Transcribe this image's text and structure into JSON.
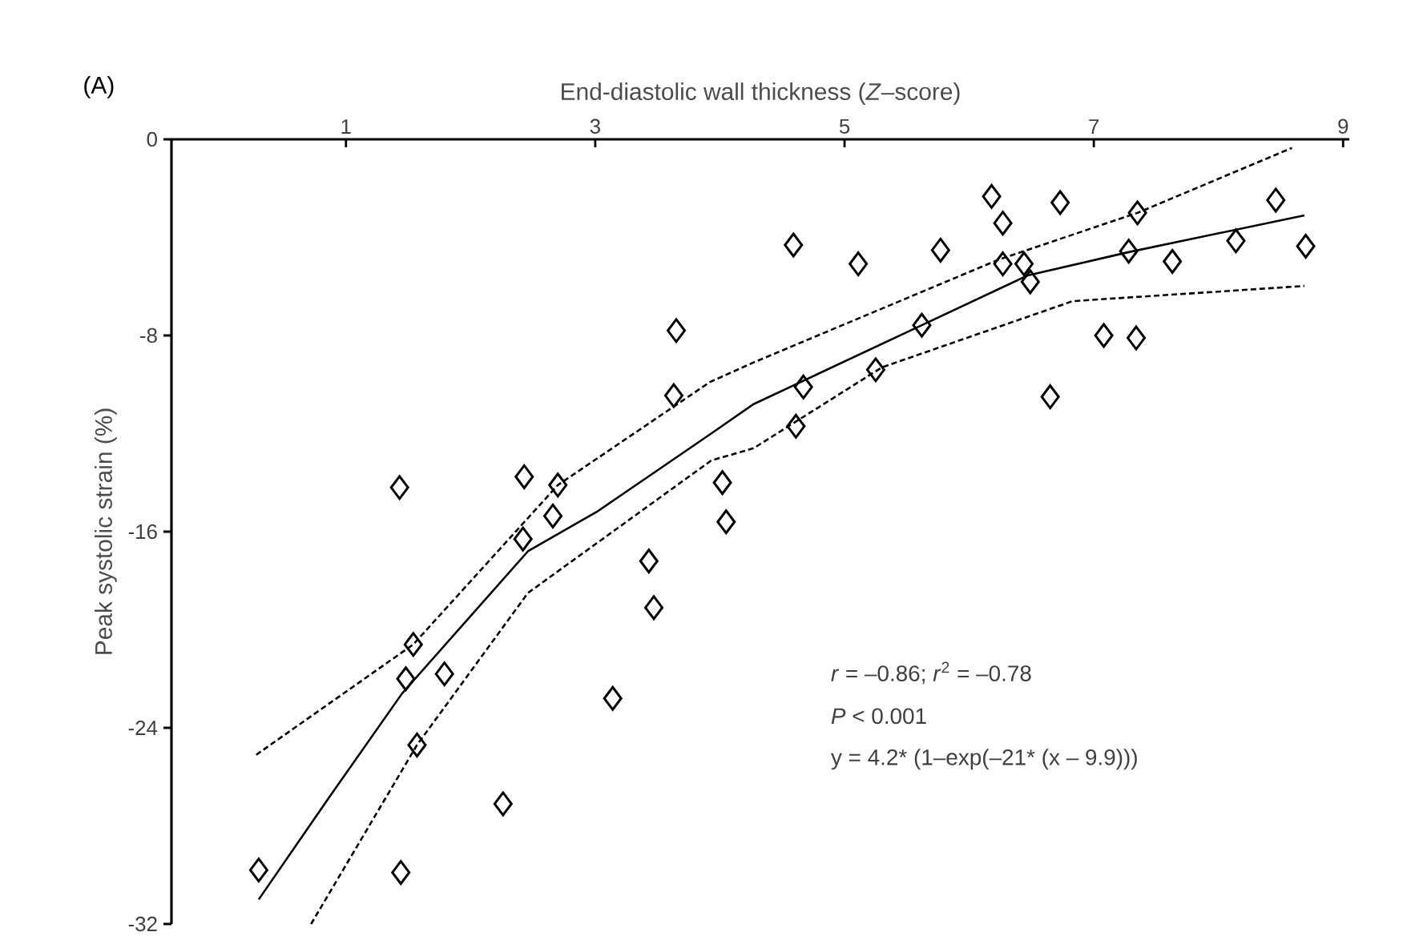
{
  "chart_data": {
    "type": "scatter",
    "xlabel": "End-diastolic wall thickness (*Z*–score)",
    "ylabel": "Peak systolic strain (%)",
    "annotations": [
      "(A)",
      "*r* = –0.86; *r*$^{2}$ = –0.78",
      "*P* < 0.001",
      "y = 4.2* (1–exp(–21* (x – 9.9)))"
    ],
    "xlim": [
      -0.4,
      9.05
    ],
    "ylim": [
      -32,
      0
    ],
    "xticks": [
      1,
      3,
      5,
      7,
      9
    ],
    "yticks": [
      0,
      -8,
      -16,
      -24,
      -32
    ],
    "series": [
      {
        "marker": "diamond",
        "color": "#000000",
        "x": [
          1.43,
          3.65,
          3.63,
          2.43,
          2.7,
          2.66,
          2.42,
          4.02,
          4.05,
          3.43,
          3.47,
          1.54,
          1.48,
          1.79,
          1.57,
          3.14,
          2.26,
          1.44,
          0.3,
          4.59,
          5.11,
          5.77,
          6.18,
          6.27,
          6.27,
          6.44,
          6.49,
          6.73,
          7.35,
          7.28,
          7.63,
          8.14,
          8.46,
          8.7,
          7.08,
          7.34,
          6.65,
          5.62,
          5.25,
          4.67,
          4.61
        ],
        "values": [
          -14.2,
          -7.8,
          -10.45,
          -13.76,
          -14.1,
          -15.36,
          -16.3,
          -14.0,
          -15.6,
          -17.2,
          -19.1,
          -20.6,
          -22.0,
          -21.8,
          -24.7,
          -22.8,
          -27.1,
          -29.9,
          -29.8,
          -4.31,
          -5.08,
          -4.52,
          -2.33,
          -3.42,
          -5.08,
          -5.08,
          -5.81,
          -2.58,
          -3.0,
          -4.56,
          -4.98,
          -4.14,
          -2.48,
          -4.36,
          -8.0,
          -8.1,
          -10.5,
          -7.58,
          -9.4,
          -10.1,
          -11.7
        ]
      },
      {
        "type": "line",
        "marker": "none",
        "line_style": "solid",
        "color": "#000000",
        "x": [
          0.3,
          0.87,
          1.45,
          2.46,
          3.01,
          3.93,
          4.27,
          5.62,
          6.47,
          7.28,
          8.69
        ],
        "values": [
          -31.0,
          -26.8,
          -22.6,
          -16.8,
          -15.2,
          -12.0,
          -10.8,
          -7.58,
          -5.55,
          -4.6,
          -3.1
        ]
      },
      {
        "type": "line",
        "marker": "none",
        "line_style": "dashed",
        "color": "#000000",
        "x": [
          0.28,
          1.54,
          2.7,
          3.92,
          4.27,
          6.24,
          7.35,
          8.59
        ],
        "values": [
          -25.1,
          -20.6,
          -14.1,
          -9.9,
          -9.1,
          -4.9,
          -3.0,
          -0.35
        ]
      },
      {
        "type": "line",
        "marker": "none",
        "line_style": "dashed",
        "color": "#000000",
        "x": [
          0.72,
          1.57,
          2.46,
          3.93,
          4.27,
          5.3,
          6.83,
          8.69
        ],
        "values": [
          -32.0,
          -24.7,
          -18.5,
          -13.1,
          -12.6,
          -9.3,
          -6.6,
          -5.98
        ]
      }
    ]
  }
}
